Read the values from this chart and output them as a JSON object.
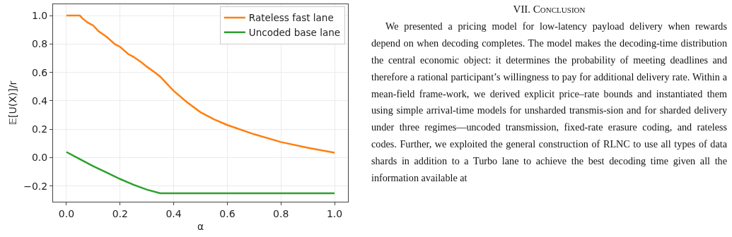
{
  "chart_data": {
    "type": "line",
    "xlabel": "α",
    "ylabel": "𝔼[U(X)]/r",
    "xlim": [
      -0.05,
      1.05
    ],
    "xticks": [
      {
        "value": 0,
        "label": "0.0"
      },
      {
        "value": 0.2,
        "label": "0.2"
      },
      {
        "value": 0.4,
        "label": "0.4"
      },
      {
        "value": 0.6,
        "label": "0.6"
      },
      {
        "value": 0.8,
        "label": "0.8"
      },
      {
        "value": 1,
        "label": "1.0"
      }
    ],
    "ylim": [
      -0.31,
      1.08
    ],
    "yticks": [
      {
        "value": -0.2,
        "label": "−0.2"
      },
      {
        "value": 0,
        "label": "0.0"
      },
      {
        "value": 0.2,
        "label": "0.2"
      },
      {
        "value": 0.4,
        "label": "0.4"
      },
      {
        "value": 0.6,
        "label": "0.6"
      },
      {
        "value": 0.8,
        "label": "0.8"
      },
      {
        "value": 1,
        "label": "1.0"
      }
    ],
    "series": [
      {
        "name": "Rateless fast lane",
        "color": "#ff7f0e",
        "x": [
          0,
          0.05,
          0.06,
          0.08,
          0.1,
          0.12,
          0.15,
          0.18,
          0.2,
          0.23,
          0.25,
          0.28,
          0.3,
          0.33,
          0.35,
          0.38,
          0.4,
          0.45,
          0.5,
          0.55,
          0.6,
          0.7,
          0.8,
          0.9,
          1.0
        ],
        "values": [
          1.0,
          1.0,
          0.98,
          0.95,
          0.93,
          0.89,
          0.85,
          0.8,
          0.78,
          0.73,
          0.71,
          0.67,
          0.64,
          0.6,
          0.57,
          0.51,
          0.47,
          0.39,
          0.32,
          0.27,
          0.23,
          0.165,
          0.11,
          0.07,
          0.035
        ]
      },
      {
        "name": "Uncoded base lane",
        "color": "#2ca02c",
        "x": [
          0,
          0.05,
          0.1,
          0.15,
          0.2,
          0.25,
          0.3,
          0.35,
          1.0
        ],
        "values": [
          0.04,
          -0.01,
          -0.06,
          -0.105,
          -0.15,
          -0.19,
          -0.225,
          -0.25,
          -0.25
        ]
      }
    ],
    "grid": true,
    "legend": "top right",
    "marker": "none",
    "line_style": "solid",
    "annotations": [
      "VII. Conclusion",
      "We presented a pricing model for low-latency payload delivery when rewards depend on when decoding completes. The model makes the decoding-time distribution the central economic object: it determines the probability of meeting deadlines and therefore a rational participant’s willingness to pay for additional delivery rate. Within a mean-field frame-work, we derived explicit price–rate bounds and instantiated them using simple arrival-time models for unsharded transmis-sion and for sharded delivery under three regimes—uncoded transmission, fixed-rate erasure coding, and rateless codes. Further, we exploited the general construction of RLNC to use all types of data shards in addition to a Turbo lane to achieve the best decoding time given all the information available at"
    ]
  }
}
